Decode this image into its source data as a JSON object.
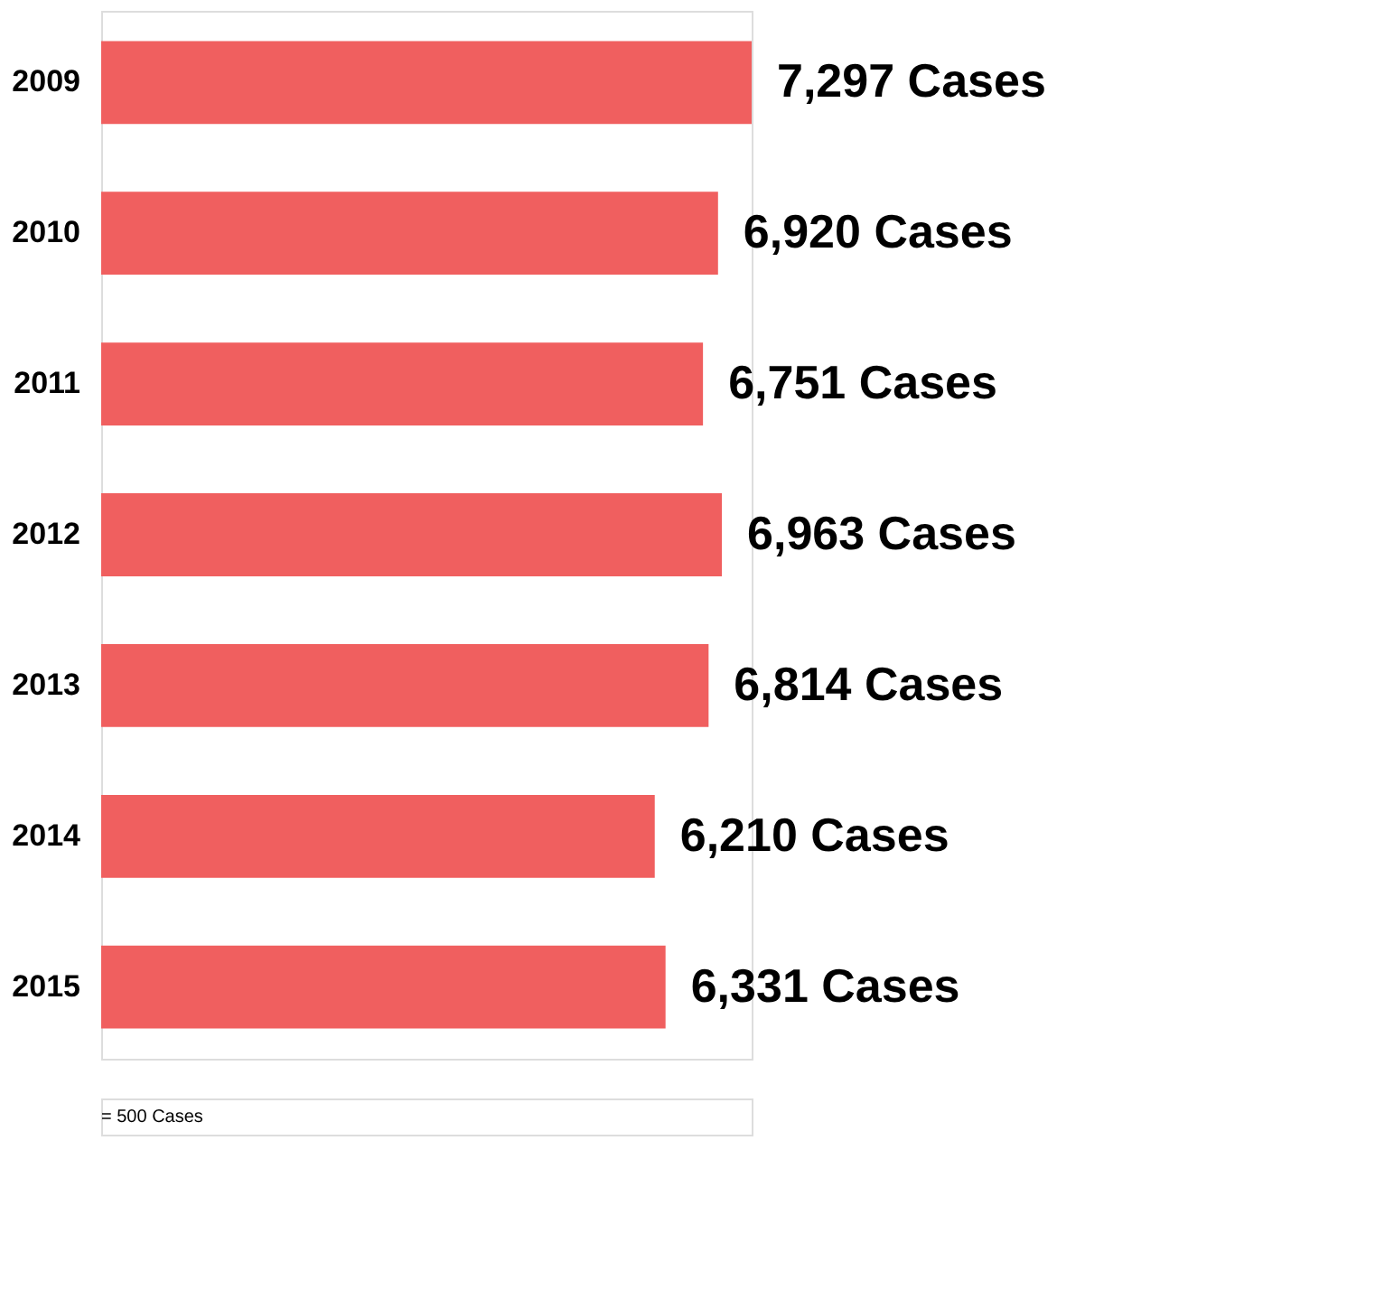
{
  "chart_data": {
    "type": "bar",
    "orientation": "horizontal",
    "categories": [
      "2009",
      "2010",
      "2011",
      "2012",
      "2013",
      "2014",
      "2015"
    ],
    "series": [
      {
        "color": "#f05f5f",
        "values": [
          7297,
          6920,
          6751,
          6963,
          6814,
          6210,
          6331
        ],
        "value_labels": [
          "7,297 Cases",
          "6,920 Cases",
          "6,751 Cases",
          "6,963 Cases",
          "6,814 Cases",
          "6,210 Cases",
          "6,331 Cases"
        ]
      }
    ],
    "tick_labels": "y",
    "grid": false,
    "annotations": [
      "= 500 Cases"
    ]
  }
}
